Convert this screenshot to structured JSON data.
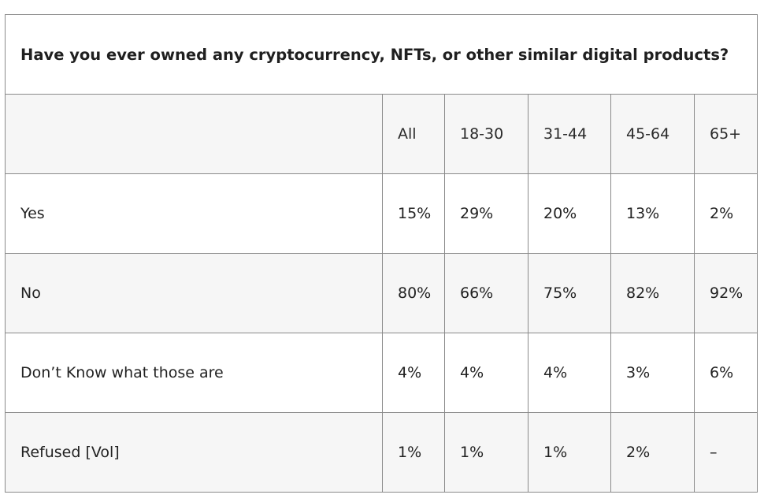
{
  "chart_data": {
    "type": "table",
    "title": "Have you ever owned any cryptocurrency, NFTs, or other similar digital products?",
    "columns": [
      "",
      "All",
      "18-30",
      "31-44",
      "45-64",
      "65+"
    ],
    "rows": [
      {
        "label": "Yes",
        "values": [
          "15%",
          "29%",
          "20%",
          "13%",
          "2%"
        ]
      },
      {
        "label": "No",
        "values": [
          "80%",
          "66%",
          "75%",
          "82%",
          "92%"
        ]
      },
      {
        "label": "Don’t Know what those are",
        "values": [
          "4%",
          "4%",
          "4%",
          "3%",
          "6%"
        ]
      },
      {
        "label": "Refused [Vol]",
        "values": [
          "1%",
          "1%",
          "1%",
          "2%",
          "–"
        ]
      }
    ]
  },
  "colors": {
    "border": "#8a8a8a",
    "row_alt": "#f6f6f6",
    "text": "#222222"
  }
}
